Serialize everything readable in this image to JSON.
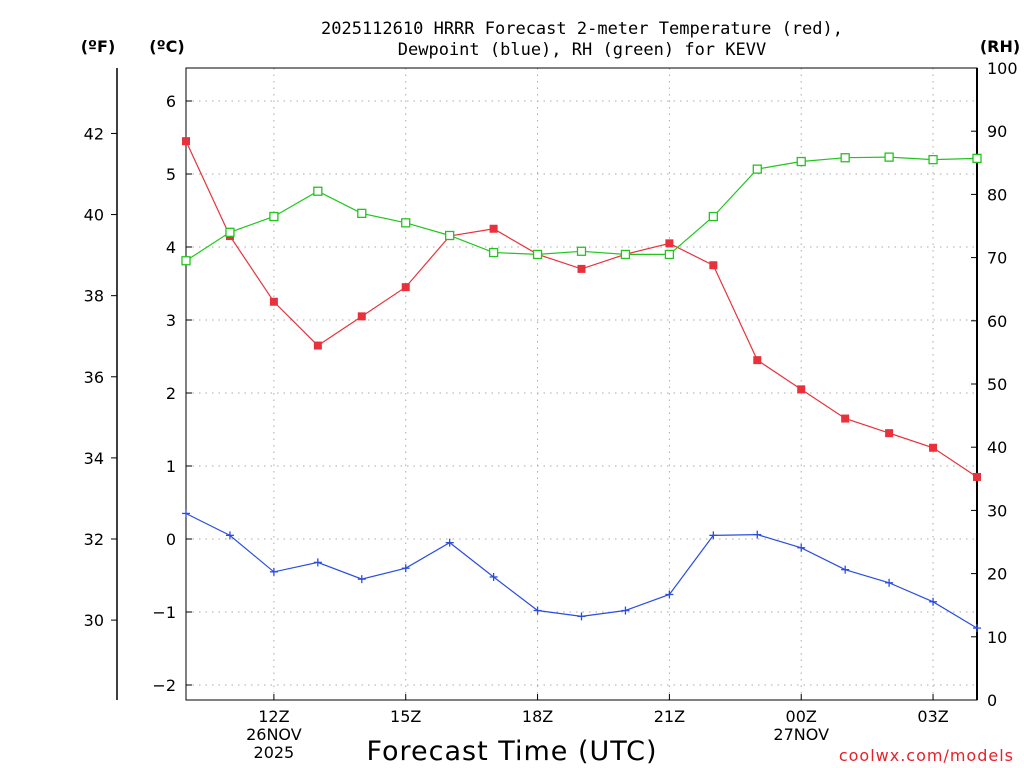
{
  "chart_data": {
    "type": "line",
    "title": [
      "2025112610 HRRR Forecast 2-meter Temperature (red),",
      "Dewpoint (blue), RH (green) for KEVV"
    ],
    "xlabel": "Forecast Time (UTC)",
    "left_outer_unit": "(ºF)",
    "left_inner_unit": "(ºC)",
    "right_unit": "(RH)",
    "credit": "coolwx.com/models",
    "x_hours": [
      10,
      11,
      12,
      13,
      14,
      15,
      16,
      17,
      18,
      19,
      20,
      21,
      22,
      23,
      24,
      25,
      26,
      27,
      28
    ],
    "x_ticks": [
      {
        "hour": 12,
        "lines": [
          "12Z",
          "26NOV",
          "2025"
        ]
      },
      {
        "hour": 15,
        "lines": [
          "15Z"
        ]
      },
      {
        "hour": 18,
        "lines": [
          "18Z"
        ]
      },
      {
        "hour": 21,
        "lines": [
          "21Z"
        ]
      },
      {
        "hour": 24,
        "lines": [
          "00Z",
          "27NOV"
        ]
      },
      {
        "hour": 27,
        "lines": [
          "03Z"
        ]
      }
    ],
    "xlim": [
      10,
      28
    ],
    "y_celsius_lim": [
      -2.2,
      6.5
    ],
    "y_celsius_ticks": [
      -2,
      -1,
      0,
      1,
      2,
      3,
      4,
      5,
      6
    ],
    "y_fahrenheit_ticks": [
      30,
      32,
      34,
      36,
      38,
      40,
      42
    ],
    "y_rh_lim": [
      0,
      100
    ],
    "y_rh_ticks": [
      0,
      10,
      20,
      30,
      40,
      50,
      60,
      70,
      80,
      90,
      100
    ],
    "series": [
      {
        "name": "Temperature",
        "units": "C",
        "color": "#e8313a",
        "marker": "filled-square",
        "values": [
          5.45,
          4.15,
          3.25,
          2.65,
          3.05,
          3.45,
          4.15,
          4.25,
          3.9,
          3.7,
          3.9,
          4.05,
          3.75,
          2.45,
          2.05,
          1.65,
          1.45,
          1.25,
          0.85
        ]
      },
      {
        "name": "Dewpoint",
        "units": "C",
        "color": "#2a4de0",
        "marker": "plus",
        "values": [
          0.35,
          0.05,
          -0.45,
          -0.32,
          -0.55,
          -0.4,
          -0.05,
          -0.52,
          -0.98,
          -1.06,
          -0.98,
          -0.76,
          0.05,
          0.06,
          -0.12,
          -0.42,
          -0.6,
          -0.86,
          -1.22
        ]
      },
      {
        "name": "RH",
        "units": "%",
        "color": "#22c51e",
        "marker": "open-square",
        "values": [
          69.5,
          74,
          76.5,
          80.5,
          77,
          75.5,
          73.5,
          70.8,
          70.5,
          71,
          70.5,
          70.5,
          76.5,
          84,
          85.2,
          85.8,
          85.9,
          85.5,
          85.7
        ]
      }
    ]
  }
}
